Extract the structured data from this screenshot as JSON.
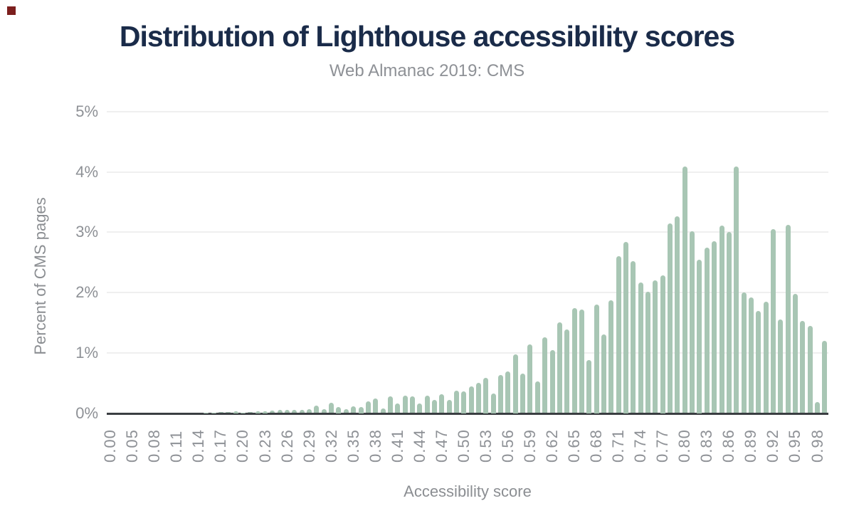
{
  "header": {
    "title": "Distribution of Lighthouse accessibility scores",
    "subtitle": "Web Almanac 2019: CMS"
  },
  "colors": {
    "background": "#ffffff",
    "title": "#1a2b49",
    "subtitle": "#8e9196",
    "axis_text": "#8b8e92",
    "tick_text": "#8e9196",
    "bar": "#a8c6b4",
    "gridline": "#efefef",
    "axis_line": "#3b3e42",
    "corner_marker": "#7c1f1e"
  },
  "chart_data": {
    "type": "bar",
    "title": "Distribution of Lighthouse accessibility scores",
    "subtitle": "Web Almanac 2019: CMS",
    "xlabel": "Accessibility score",
    "ylabel": "Percent of CMS pages",
    "ylim": [
      0,
      5
    ],
    "grid": true,
    "legend": false,
    "y_ticks": [
      {
        "label": "5%",
        "value": 5
      },
      {
        "label": "4%",
        "value": 4
      },
      {
        "label": "3%",
        "value": 3
      },
      {
        "label": "2%",
        "value": 2
      },
      {
        "label": "1%",
        "value": 1
      },
      {
        "label": "0%",
        "value": 0
      }
    ],
    "x_tick_label_every": 3,
    "x_tick_labels": [
      "0.00",
      "0.05",
      "0.08",
      "0.11",
      "0.14",
      "0.17",
      "0.20",
      "0.23",
      "0.26",
      "0.29",
      "0.32",
      "0.35",
      "0.38",
      "0.41",
      "0.44",
      "0.47",
      "0.50",
      "0.53",
      "0.56",
      "0.59",
      "0.62",
      "0.65",
      "0.68",
      "0.71",
      "0.74",
      "0.77",
      "0.80",
      "0.83",
      "0.86",
      "0.89",
      "0.92",
      "0.95",
      "0.98"
    ],
    "categories": [
      "0.00",
      "0.03",
      "0.04",
      "0.05",
      "0.06",
      "0.07",
      "0.08",
      "0.09",
      "0.10",
      "0.11",
      "0.12",
      "0.13",
      "0.14",
      "0.15",
      "0.16",
      "0.17",
      "0.18",
      "0.19",
      "0.20",
      "0.21",
      "0.22",
      "0.23",
      "0.24",
      "0.25",
      "0.26",
      "0.27",
      "0.28",
      "0.29",
      "0.30",
      "0.31",
      "0.32",
      "0.33",
      "0.34",
      "0.35",
      "0.36",
      "0.37",
      "0.38",
      "0.39",
      "0.40",
      "0.41",
      "0.42",
      "0.43",
      "0.44",
      "0.45",
      "0.46",
      "0.47",
      "0.48",
      "0.49",
      "0.50",
      "0.51",
      "0.52",
      "0.53",
      "0.54",
      "0.55",
      "0.56",
      "0.57",
      "0.58",
      "0.59",
      "0.60",
      "0.61",
      "0.62",
      "0.63",
      "0.64",
      "0.65",
      "0.66",
      "0.67",
      "0.68",
      "0.69",
      "0.70",
      "0.71",
      "0.72",
      "0.73",
      "0.74",
      "0.75",
      "0.76",
      "0.77",
      "0.78",
      "0.79",
      "0.80",
      "0.81",
      "0.82",
      "0.83",
      "0.84",
      "0.85",
      "0.86",
      "0.87",
      "0.88",
      "0.89",
      "0.90",
      "0.91",
      "0.92",
      "0.93",
      "0.94",
      "0.95",
      "0.96",
      "0.97",
      "0.98",
      "0.99"
    ],
    "values": [
      0,
      0,
      0,
      0,
      0,
      0,
      0,
      0,
      0,
      0,
      0,
      0,
      0,
      0.01,
      0.01,
      0.02,
      0.02,
      0.03,
      0.01,
      0.02,
      0.03,
      0.03,
      0.04,
      0.05,
      0.05,
      0.05,
      0.05,
      0.06,
      0.12,
      0.07,
      0.17,
      0.1,
      0.07,
      0.11,
      0.1,
      0.2,
      0.24,
      0.08,
      0.28,
      0.16,
      0.29,
      0.28,
      0.16,
      0.29,
      0.22,
      0.31,
      0.22,
      0.37,
      0.36,
      0.44,
      0.5,
      0.59,
      0.33,
      0.63,
      0.69,
      0.98,
      0.65,
      1.14,
      0.53,
      1.26,
      1.04,
      1.5,
      1.39,
      1.74,
      1.72,
      0.88,
      1.8,
      1.3,
      1.87,
      2.6,
      2.84,
      2.52,
      2.17,
      2.01,
      2.2,
      2.29,
      3.15,
      3.26,
      4.09,
      3.02,
      2.55,
      2.74,
      2.85,
      3.11,
      3.0,
      4.09,
      2.0,
      1.92,
      1.69,
      1.85,
      3.05,
      1.55,
      3.12,
      1.98,
      1.53,
      1.45,
      0.18,
      1.2
    ]
  }
}
